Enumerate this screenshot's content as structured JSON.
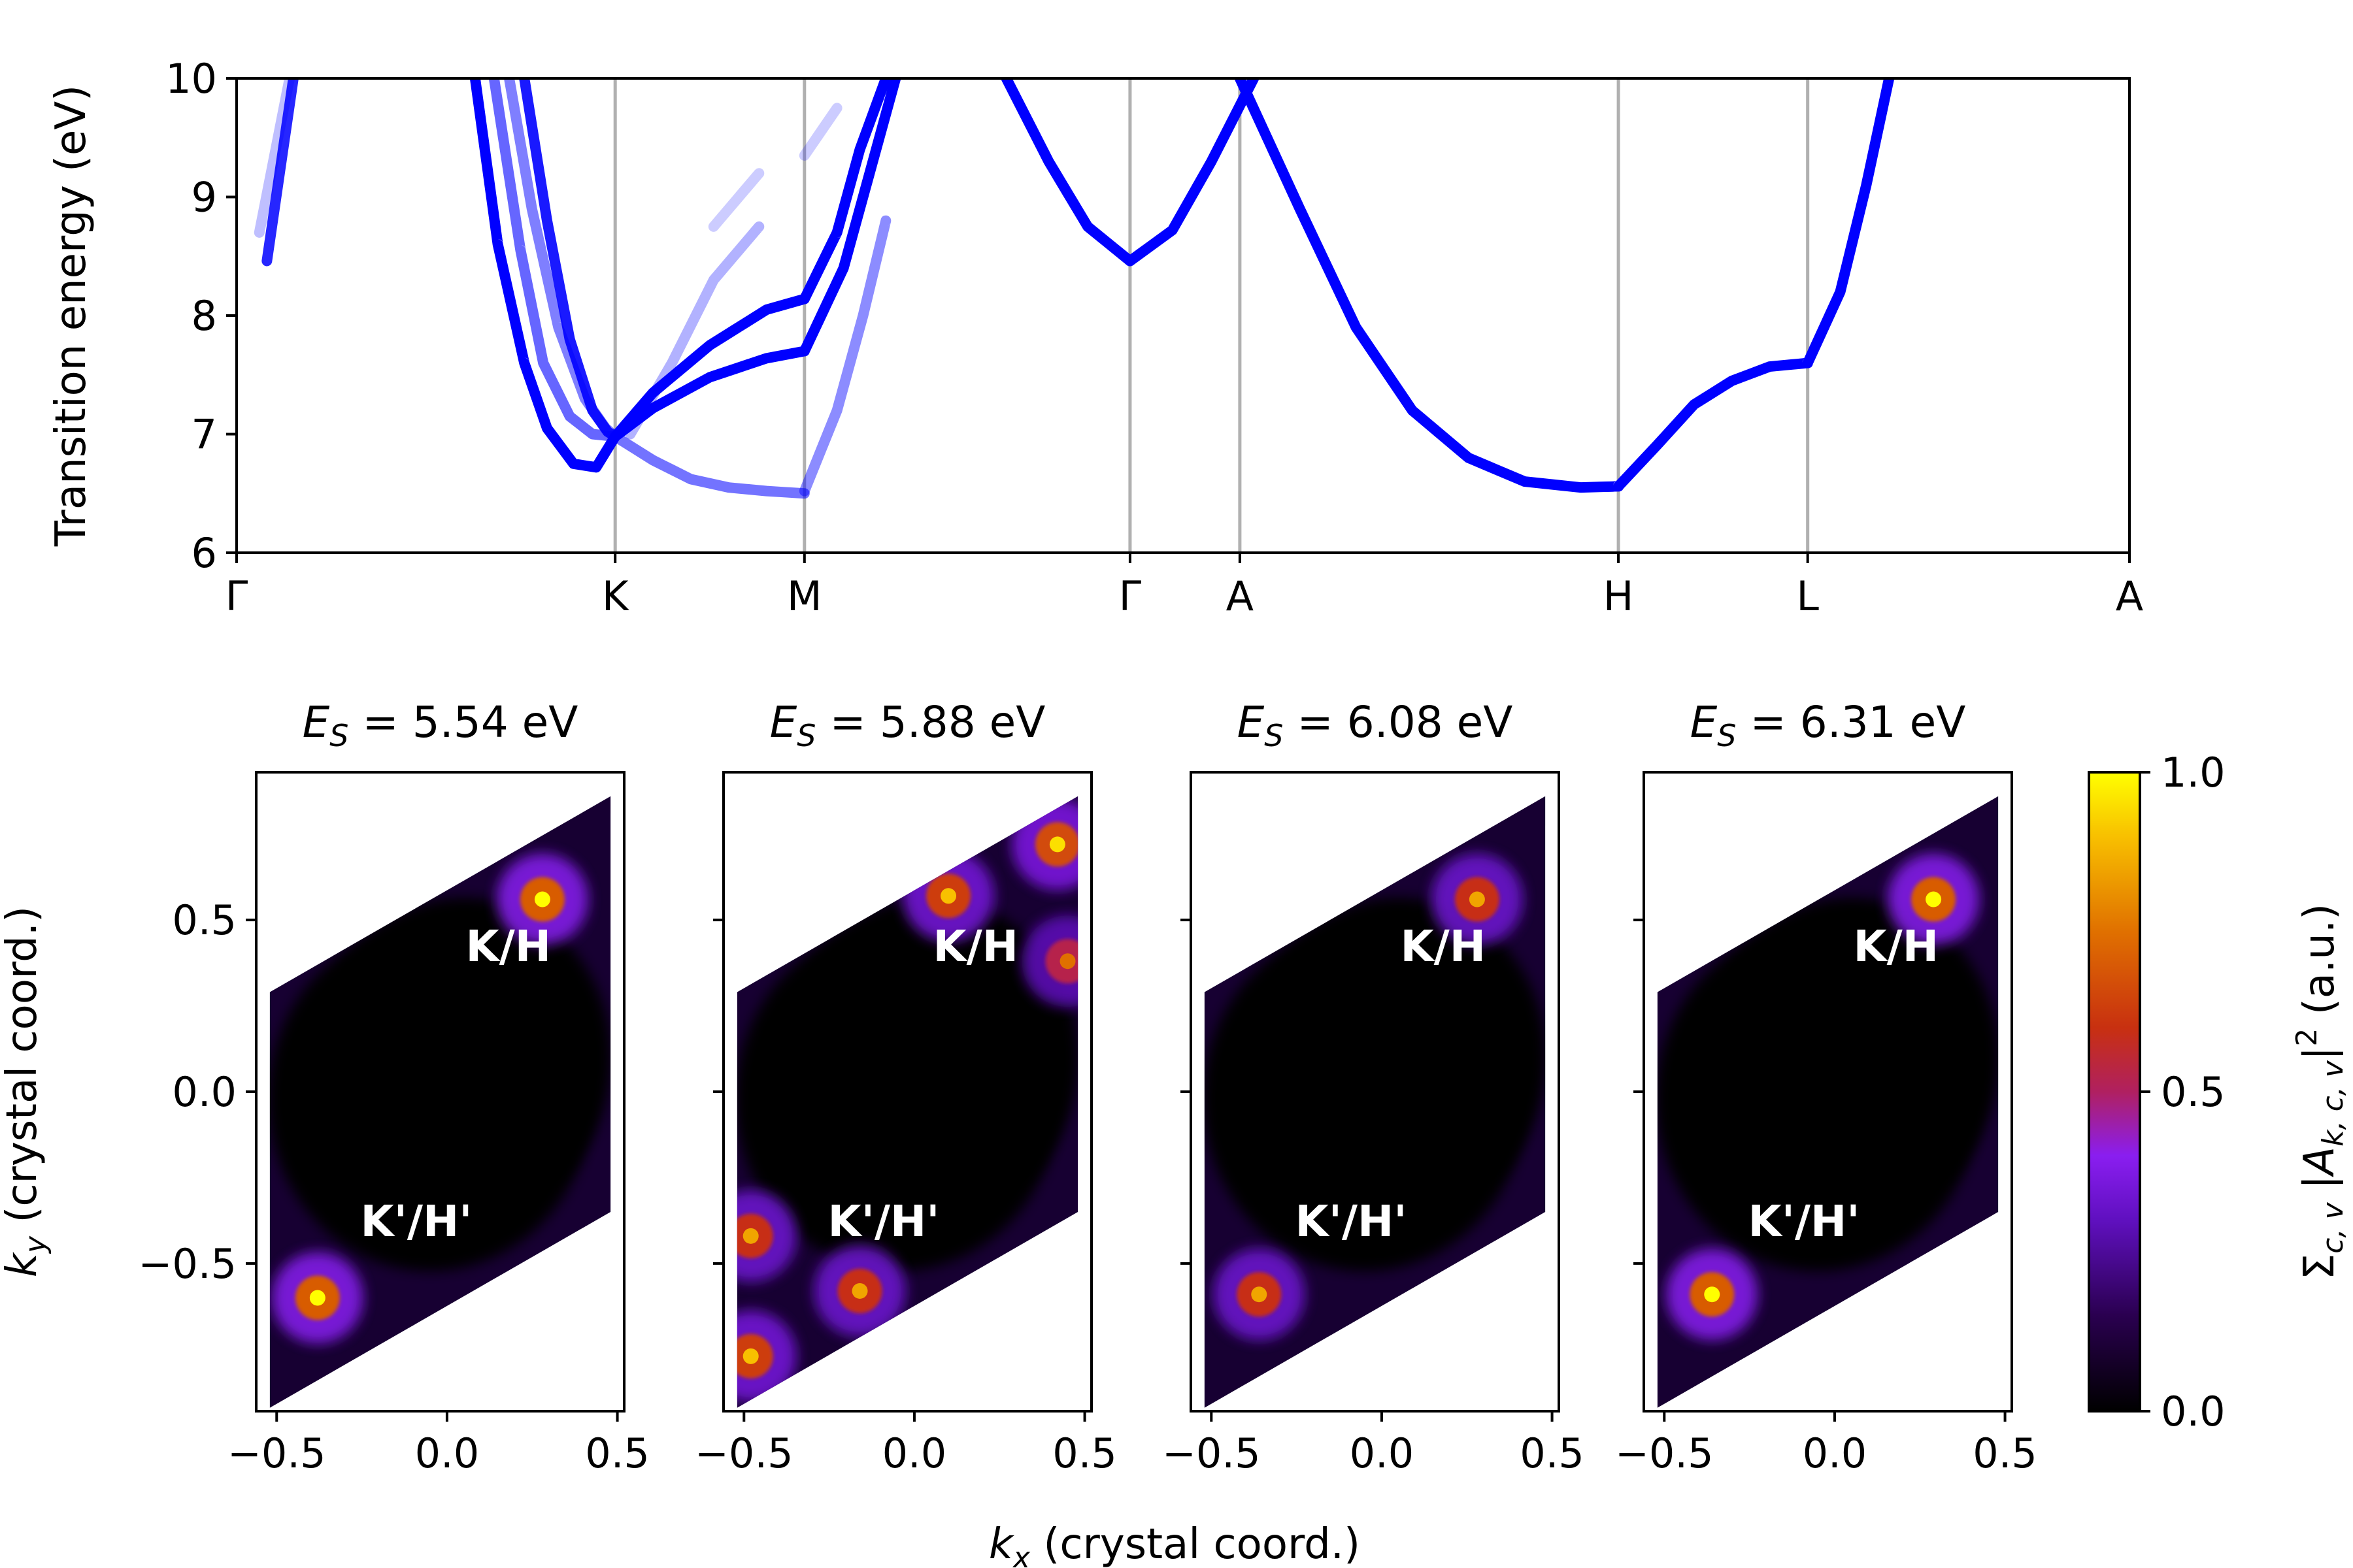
{
  "chart_data": [
    {
      "type": "line",
      "ylabel": "Transition energy (eV)",
      "ylim": [
        6,
        10
      ],
      "yticks": [
        "6",
        "7",
        "8",
        "9",
        "10"
      ],
      "xticks": [
        "Γ",
        "K",
        "M",
        "Γ",
        "A",
        "H",
        "L",
        "A"
      ],
      "vertical_lines_at": [
        "K",
        "M",
        "Γ",
        "A",
        "H",
        "L"
      ],
      "grid": false,
      "color": "#0000ff",
      "series": [
        {
          "segment": "Γ-K",
          "strength": 0.85,
          "x": [
            0.16,
            0.3
          ],
          "y": [
            8.46,
            10.0
          ]
        },
        {
          "segment": "Γ-K",
          "strength": 0.25,
          "x": [
            0.12,
            0.28
          ],
          "y": [
            8.7,
            10.0
          ]
        },
        {
          "segment": "Γ-K",
          "strength": 1.0,
          "x": [
            1.26,
            1.38,
            1.52,
            1.64,
            1.78,
            1.9,
            2.0
          ],
          "y": [
            10.0,
            8.6,
            7.6,
            7.05,
            6.75,
            6.72,
            6.98
          ]
        },
        {
          "segment": "Γ-K",
          "strength": 0.6,
          "x": [
            1.36,
            1.5,
            1.62,
            1.76,
            1.88,
            2.0
          ],
          "y": [
            10.0,
            8.55,
            7.6,
            7.15,
            7.0,
            6.98
          ]
        },
        {
          "segment": "Γ-K",
          "strength": 0.5,
          "x": [
            1.44,
            1.56,
            1.7,
            1.84,
            1.95,
            2.0
          ],
          "y": [
            10.0,
            8.9,
            7.9,
            7.3,
            7.05,
            6.98
          ]
        },
        {
          "segment": "Γ-K",
          "strength": 0.9,
          "x": [
            1.52,
            1.64,
            1.76,
            1.88,
            1.96,
            2.0
          ],
          "y": [
            10.0,
            8.8,
            7.8,
            7.2,
            7.02,
            6.98
          ]
        },
        {
          "segment": "K-M",
          "strength": 1.0,
          "x": [
            2.0,
            2.1,
            2.25,
            2.4,
            2.5
          ],
          "y": [
            6.98,
            7.35,
            7.75,
            8.05,
            8.14
          ]
        },
        {
          "segment": "K-M",
          "strength": 1.0,
          "x": [
            2.0,
            2.1,
            2.25,
            2.4,
            2.5
          ],
          "y": [
            6.98,
            7.22,
            7.48,
            7.64,
            7.7
          ]
        },
        {
          "segment": "K-M",
          "strength": 0.55,
          "x": [
            2.0,
            2.1,
            2.2,
            2.3,
            2.4,
            2.5
          ],
          "y": [
            6.98,
            6.78,
            6.62,
            6.55,
            6.52,
            6.5
          ]
        },
        {
          "segment": "K-M",
          "strength": 0.3,
          "x": [
            2.04,
            2.15,
            2.26,
            2.38
          ],
          "y": [
            7.0,
            7.6,
            8.3,
            8.75
          ]
        },
        {
          "segment": "K-M",
          "strength": 0.2,
          "x": [
            2.26,
            2.38
          ],
          "y": [
            8.75,
            9.2
          ]
        },
        {
          "segment": "M-Γ",
          "strength": 1.0,
          "x": [
            2.5,
            2.6,
            2.67,
            2.75
          ],
          "y": [
            8.14,
            8.7,
            9.4,
            10.0
          ]
        },
        {
          "segment": "M-Γ",
          "strength": 1.0,
          "x": [
            2.5,
            2.62,
            2.7,
            2.78
          ],
          "y": [
            7.7,
            8.4,
            9.2,
            10.0
          ]
        },
        {
          "segment": "M-Γ",
          "strength": 0.45,
          "x": [
            2.5,
            2.6,
            2.68,
            2.75
          ],
          "y": [
            6.52,
            7.2,
            8.0,
            8.8
          ]
        },
        {
          "segment": "M-Γ",
          "strength": 0.2,
          "x": [
            2.5,
            2.6
          ],
          "y": [
            9.35,
            9.75
          ]
        },
        {
          "segment": "Γ-A",
          "strength": 1.0,
          "x": [
            3.0,
            3.13,
            3.25,
            3.38
          ],
          "y": [
            8.46,
            8.72,
            9.3,
            10.0
          ]
        },
        {
          "segment": "Γ-A",
          "strength": 1.0,
          "x": [
            2.62,
            2.75,
            2.87,
            3.0
          ],
          "y": [
            10.0,
            9.3,
            8.75,
            8.46
          ]
        },
        {
          "segment": "A-H",
          "strength": 1.0,
          "x": [
            4.69,
            4.85,
            5.0,
            5.15,
            5.3,
            5.45,
            5.6,
            5.7
          ],
          "y": [
            10.0,
            8.9,
            7.9,
            7.2,
            6.8,
            6.6,
            6.55,
            6.56
          ]
        },
        {
          "segment": "H-L",
          "strength": 1.0,
          "x": [
            5.7,
            5.8,
            5.9,
            6.0,
            6.1,
            6.2
          ],
          "y": [
            6.56,
            6.9,
            7.25,
            7.45,
            7.57,
            7.6
          ]
        },
        {
          "segment": "L-A",
          "strength": 1.0,
          "x": [
            6.2,
            6.3,
            6.38,
            6.45
          ],
          "y": [
            7.6,
            8.2,
            9.1,
            10.0
          ]
        }
      ]
    },
    {
      "type": "heatmap",
      "xlabel": "k_x (crystal coord.)",
      "ylabel": "k_y (crystal coord.)",
      "xticks": [
        "−0.5",
        "0.0",
        "0.5"
      ],
      "yticks": [
        "−0.5",
        "0.0",
        "0.5"
      ],
      "xlim": [
        -0.56,
        0.52
      ],
      "ylim": [
        -0.93,
        0.93
      ],
      "colorbar": {
        "label": "Σc,v |Ak,c,v|² (a.u.)",
        "range": [
          0,
          1
        ],
        "ticks": [
          "0.0",
          "0.5",
          "1.0"
        ],
        "colormap": "gnuplot"
      },
      "panels": [
        {
          "title_prefix": "E",
          "title_sub": "S",
          "title_value": "= 5.54 eV",
          "labels": [
            "K/H",
            "K'/H'"
          ],
          "hotspots": [
            {
              "kx": 0.28,
              "ky": 0.56,
              "value": 1.0
            },
            {
              "kx": -0.38,
              "ky": -0.6,
              "value": 1.0
            }
          ]
        },
        {
          "title_prefix": "E",
          "title_sub": "S",
          "title_value": "= 5.88 eV",
          "labels": [
            "K/H",
            "K'/H'"
          ],
          "hotspots": [
            {
              "kx": 0.1,
              "ky": 0.57,
              "value": 0.9
            },
            {
              "kx": 0.42,
              "ky": 0.72,
              "value": 0.95
            },
            {
              "kx": 0.45,
              "ky": 0.38,
              "value": 0.75
            },
            {
              "kx": -0.48,
              "ky": -0.42,
              "value": 0.85
            },
            {
              "kx": -0.48,
              "ky": -0.77,
              "value": 0.9
            },
            {
              "kx": -0.16,
              "ky": -0.58,
              "value": 0.85
            }
          ]
        },
        {
          "title_prefix": "E",
          "title_sub": "S",
          "title_value": "= 6.08 eV",
          "labels": [
            "K/H",
            "K'/H'"
          ],
          "hotspots": [
            {
              "kx": 0.28,
              "ky": 0.56,
              "value": 0.85
            },
            {
              "kx": -0.36,
              "ky": -0.59,
              "value": 0.85
            }
          ]
        },
        {
          "title_prefix": "E",
          "title_sub": "S",
          "title_value": "= 6.31 eV",
          "labels": [
            "K/H",
            "K'/H'"
          ],
          "hotspots": [
            {
              "kx": 0.29,
              "ky": 0.56,
              "value": 1.0
            },
            {
              "kx": -0.36,
              "ky": -0.59,
              "value": 1.0
            }
          ]
        }
      ]
    }
  ]
}
